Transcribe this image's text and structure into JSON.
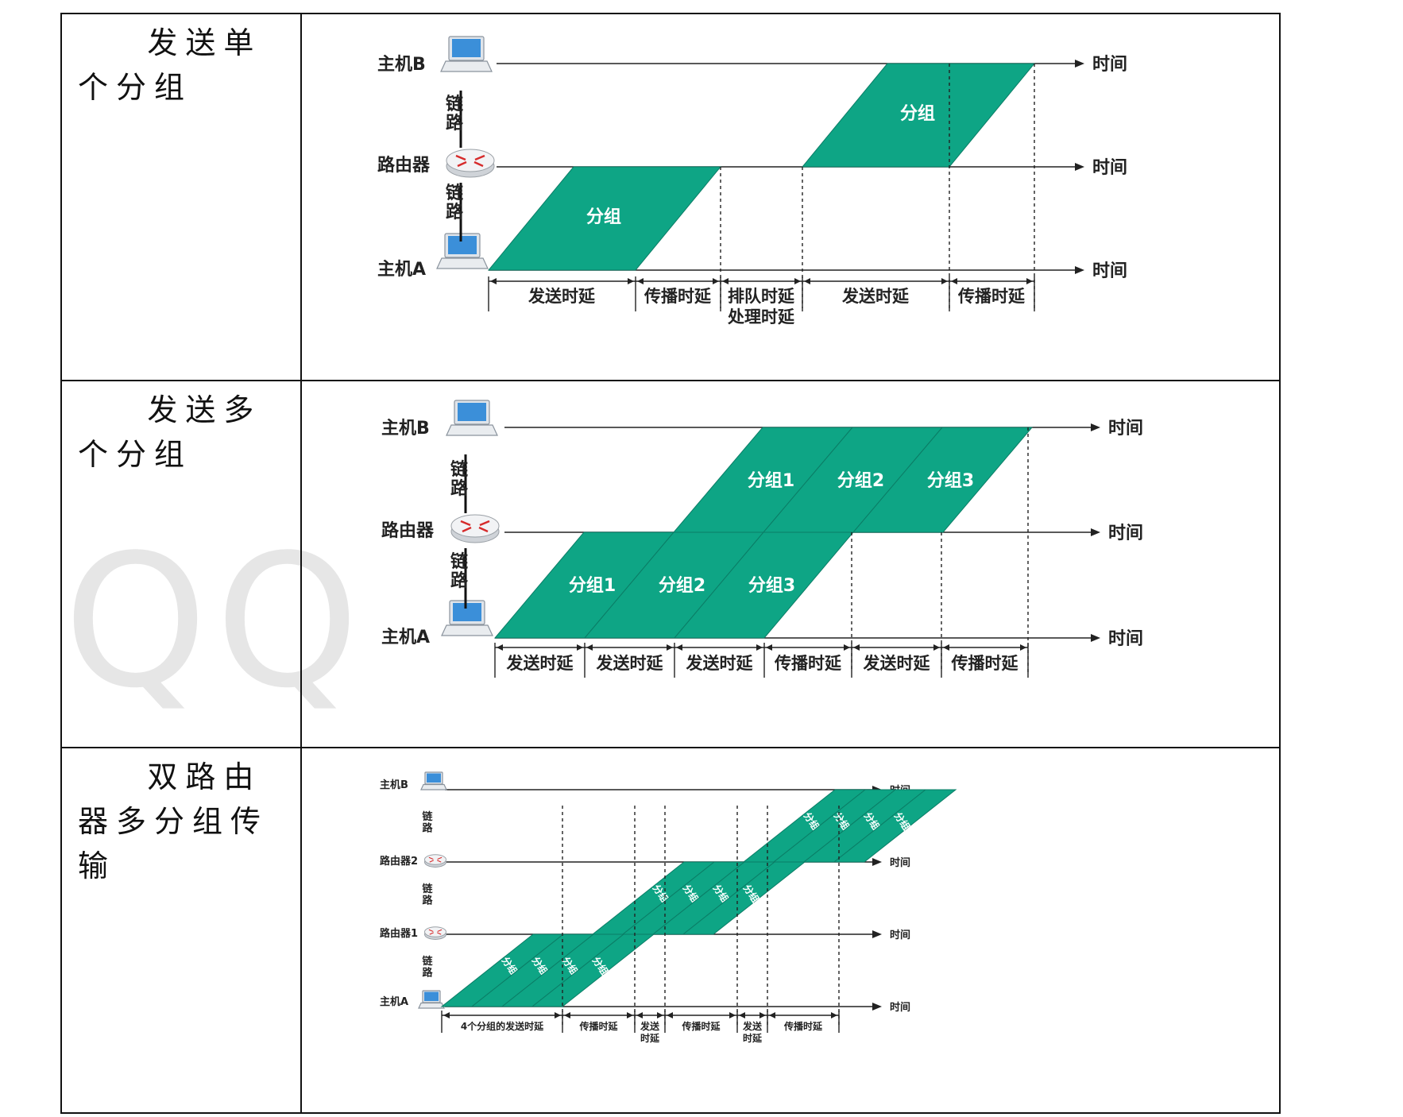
{
  "watermark": "QQ",
  "rows": [
    {
      "label": "发送单个分组",
      "nodes": [
        "主机B",
        "路由器",
        "主机A"
      ],
      "links": [
        "链路",
        "链路"
      ],
      "time": "时间",
      "packet": "分组",
      "delays": [
        "发送时延",
        "传播时延",
        "排队时延",
        "处理时延",
        "发送时延",
        "传播时延"
      ]
    },
    {
      "label": "发送多个分组",
      "nodes": [
        "主机B",
        "路由器",
        "主机A"
      ],
      "links": [
        "链路",
        "链路"
      ],
      "time": "时间",
      "packets": [
        "分组1",
        "分组2",
        "分组3"
      ],
      "delays": [
        "发送时延",
        "发送时延",
        "发送时延",
        "传播时延",
        "发送时延",
        "传播时延"
      ]
    },
    {
      "label": "双路由器多分组传输",
      "nodes": [
        "主机B",
        "路由器2",
        "路由器1",
        "主机A"
      ],
      "links": [
        "链路",
        "链路",
        "链路"
      ],
      "time": "时间",
      "packets": [
        "分组1",
        "分组2",
        "分组3",
        "分组4"
      ],
      "delays": [
        "4个分组的发送时延",
        "传播时延",
        "发送时延",
        "传播时延",
        "发送时延",
        "传播时延"
      ]
    }
  ],
  "colors": {
    "packet": "#0ea585",
    "packet_border": "#0b7d66",
    "line": "#222222"
  }
}
